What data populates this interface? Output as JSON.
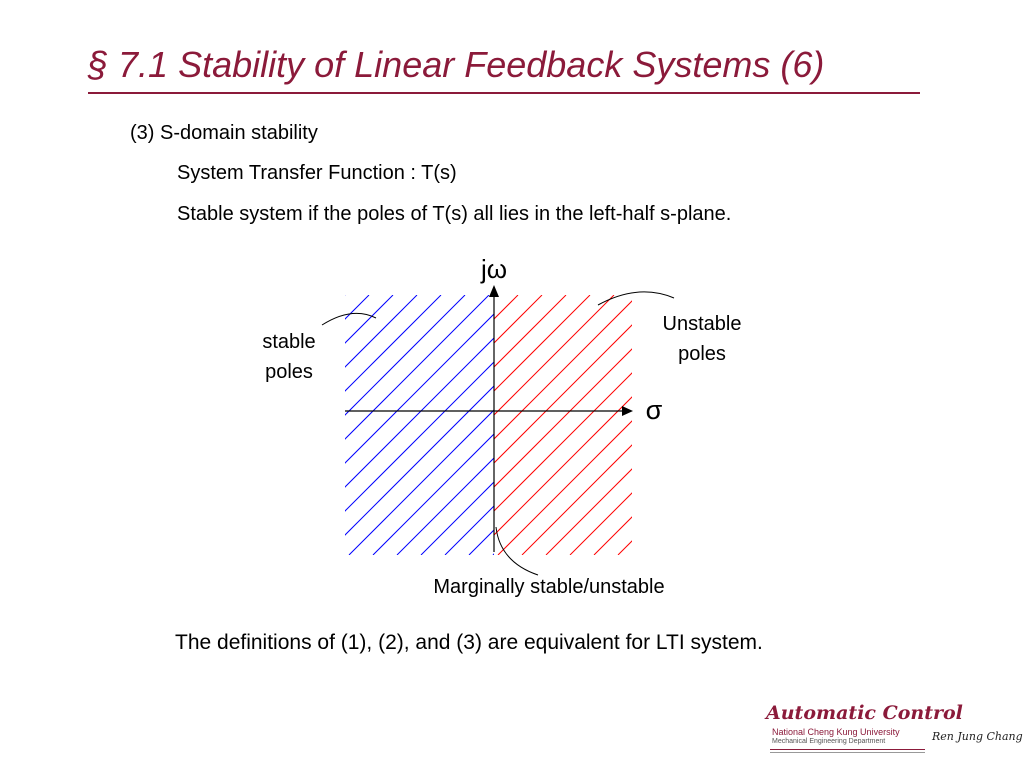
{
  "slide": {
    "title": "§ 7.1   Stability of Linear Feedback Systems (6)",
    "lines": [
      "(3)  S-domain stability",
      "System Transfer Function : T(s)",
      "Stable system if the poles of T(s) all lies in the left-half s-plane."
    ],
    "conclusion": "The definitions of (1), (2), and (3) are equivalent  for LTI system."
  },
  "diagram": {
    "vertical_axis_label": "jω",
    "horizontal_axis_label": "σ",
    "left_label": [
      "stable",
      "poles"
    ],
    "right_label": [
      "Unstable",
      "poles"
    ],
    "bottom_label": "Marginally stable/unstable",
    "colors": {
      "left_half_hatch": "#0000ff",
      "right_half_hatch": "#ff0000",
      "axes": "#000000",
      "title": "#8b1a3a"
    }
  },
  "logo": {
    "name": "Automatic Control",
    "university": "National Cheng Kung University",
    "department": "Mechanical Engineering Department",
    "author": "Ren Jung Chang"
  }
}
